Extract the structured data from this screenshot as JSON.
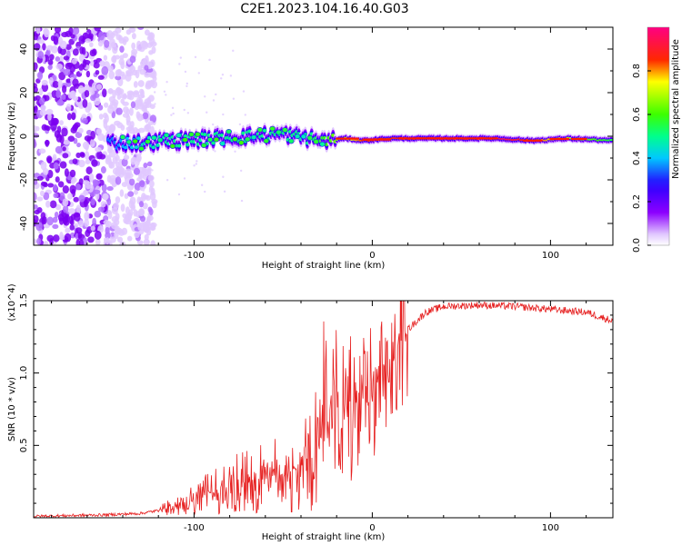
{
  "title": "C2E1.2023.104.16.40.G03",
  "charts": {
    "spectrogram": {
      "type": "heatmap",
      "xlabel": "Height of straight line (km)",
      "ylabel": "Frequency (Hz)",
      "xlim": [
        -190,
        135
      ],
      "ylim": [
        -50,
        50
      ],
      "xticks": [
        "-100",
        "0",
        "100"
      ],
      "yticks": [
        "-40",
        "-20",
        "0",
        "20",
        "40"
      ],
      "colorbar": {
        "label": "Normalized spectral amplitude",
        "range": [
          0.0,
          1.0
        ],
        "ticks": [
          "0.0",
          "0.2",
          "0.4",
          "0.6",
          "0.8"
        ],
        "colormap": [
          "#ffffff",
          "#d9b8ff",
          "#8a00ff",
          "#2a00ff",
          "#00e6ff",
          "#00ff60",
          "#ffff00",
          "#ff0000",
          "#ff0080"
        ]
      },
      "noise_region_x": [
        -190,
        -130
      ],
      "ridge": {
        "x": [
          -145,
          -130,
          -110,
          -90,
          -70,
          -50,
          -35,
          -25,
          -15,
          -5,
          10,
          40,
          70,
          90,
          110,
          135
        ],
        "freq": [
          -3,
          -3,
          -2,
          -1,
          0,
          1,
          -1,
          -2,
          -1,
          -2,
          -1,
          -1,
          -1,
          -2,
          -1,
          -2
        ],
        "amplitude": [
          0.35,
          0.45,
          0.5,
          0.5,
          0.5,
          0.5,
          0.5,
          0.6,
          0.7,
          0.85,
          0.85,
          0.95,
          0.95,
          0.85,
          0.7,
          0.55
        ]
      }
    },
    "snr": {
      "type": "line",
      "xlabel": "Height of straight line (km)",
      "ylabel": "SNR (10 * v/v)",
      "ymultiplier": "(x10^4)",
      "xlim": [
        -190,
        135
      ],
      "ylim": [
        0,
        1.5
      ],
      "xticks": [
        "-100",
        "0",
        "100"
      ],
      "yticks": [
        "0.5",
        "1.0",
        "1.5"
      ],
      "line_color": "#e62020",
      "envelope": {
        "x": [
          -190,
          -150,
          -130,
          -120,
          -110,
          -100,
          -90,
          -80,
          -70,
          -60,
          -50,
          -40,
          -30,
          -25,
          -20,
          -15,
          -10,
          -5,
          0,
          10,
          20,
          30,
          40,
          60,
          80,
          100,
          120,
          135
        ],
        "y": [
          0.01,
          0.02,
          0.03,
          0.05,
          0.08,
          0.12,
          0.18,
          0.22,
          0.25,
          0.28,
          0.3,
          0.35,
          0.5,
          0.7,
          0.85,
          0.7,
          0.65,
          0.75,
          0.9,
          1.1,
          1.3,
          1.42,
          1.46,
          1.47,
          1.46,
          1.44,
          1.42,
          1.36
        ]
      }
    }
  },
  "chart_data": [
    {
      "type": "heatmap",
      "xlabel": "Height of straight line (km)",
      "ylabel": "Frequency (Hz)",
      "xlim": [
        -190,
        135
      ],
      "ylim": [
        -50,
        50
      ],
      "zlabel": "Normalized spectral amplitude",
      "zlim": [
        0,
        1
      ]
    },
    {
      "type": "line",
      "xlabel": "Height of straight line (km)",
      "ylabel": "SNR (10 * v/v)",
      "xlim": [
        -190,
        135
      ],
      "ylim": [
        0,
        1.5
      ]
    }
  ]
}
